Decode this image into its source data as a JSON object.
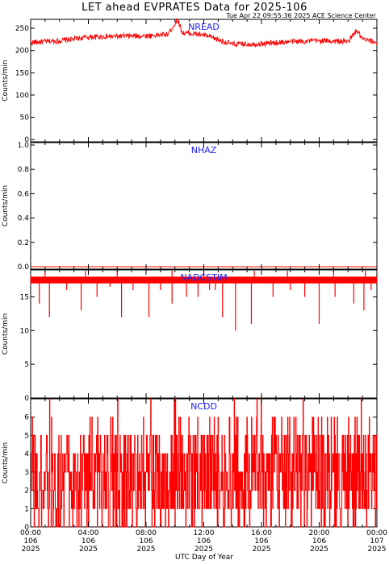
{
  "title": "LET ahead EVPRATES Data for 2025-106",
  "timestamp": "Tue Apr 22 09:55:36 2025 ACE Science Center",
  "xlabel": "UTC Day of Year",
  "x_ticks": [
    {
      "time": "00:00",
      "doy": "106",
      "year": "2025"
    },
    {
      "time": "04:00",
      "doy": "106",
      "year": "2025"
    },
    {
      "time": "08:00",
      "doy": "106",
      "year": "2025"
    },
    {
      "time": "12:00",
      "doy": "106",
      "year": "2025"
    },
    {
      "time": "16:00",
      "doy": "106",
      "year": "2025"
    },
    {
      "time": "20:00",
      "doy": "106",
      "year": "2025"
    },
    {
      "time": "00:00",
      "doy": "107",
      "year": "2025"
    }
  ],
  "colors": {
    "trace": "#ff0000",
    "panel_label": "#1a1aff",
    "axes": "#000000"
  },
  "chart_data": [
    {
      "type": "line",
      "panel_label": "NREAD",
      "ylabel": "Counts/min",
      "xlim_hours": [
        0,
        24
      ],
      "ylim": [
        -5,
        270
      ],
      "yticks": [
        0,
        50,
        100,
        150,
        200,
        250
      ],
      "ytick_labels": [
        "0",
        "50",
        "100",
        "150",
        "200",
        "250"
      ],
      "baseline_profile": [
        [
          0,
          218
        ],
        [
          2,
          222
        ],
        [
          4,
          230
        ],
        [
          6,
          232
        ],
        [
          8,
          233
        ],
        [
          9.5,
          236
        ],
        [
          10.2,
          270
        ],
        [
          10.5,
          240
        ],
        [
          12,
          235
        ],
        [
          13,
          224
        ],
        [
          14,
          214
        ],
        [
          16,
          215
        ],
        [
          18,
          220
        ],
        [
          20,
          222
        ],
        [
          22,
          220
        ],
        [
          22.6,
          245
        ],
        [
          23,
          225
        ],
        [
          24,
          218
        ]
      ],
      "noise": 6
    },
    {
      "type": "line",
      "panel_label": "NHAZ",
      "ylabel": "Counts/min",
      "xlim_hours": [
        0,
        24
      ],
      "ylim": [
        -0.02,
        1.02
      ],
      "yticks": [
        0,
        0.2,
        0.4,
        0.6,
        0.8,
        1.0
      ],
      "ytick_labels": [
        "0.0",
        "0.2",
        "0.4",
        "0.6",
        "0.8",
        "1.0"
      ],
      "constant_value": 0
    },
    {
      "type": "line",
      "panel_label": "NADCSTIM",
      "ylabel": "Counts/min",
      "xlim_hours": [
        0,
        24
      ],
      "ylim": [
        0,
        19
      ],
      "yticks": [
        0,
        5,
        10,
        15
      ],
      "ytick_labels": [
        "0",
        "5",
        "10",
        "15"
      ],
      "band": [
        17,
        18
      ],
      "dips": [
        [
          0.6,
          14
        ],
        [
          1.3,
          12
        ],
        [
          2.5,
          16
        ],
        [
          3.5,
          13
        ],
        [
          4.6,
          15
        ],
        [
          5.5,
          16.5
        ],
        [
          6.3,
          12
        ],
        [
          7.1,
          16
        ],
        [
          8.2,
          12
        ],
        [
          9.0,
          16
        ],
        [
          9.8,
          14
        ],
        [
          10.8,
          15
        ],
        [
          11.6,
          15
        ],
        [
          12.4,
          16
        ],
        [
          12.8,
          16
        ],
        [
          13.3,
          12
        ],
        [
          14.2,
          10
        ],
        [
          15.3,
          11
        ],
        [
          16.8,
          15
        ],
        [
          18.0,
          16
        ],
        [
          19.0,
          15
        ],
        [
          20.0,
          11
        ],
        [
          21.1,
          15
        ],
        [
          22.4,
          14
        ],
        [
          23.1,
          13
        ],
        [
          23.6,
          16
        ]
      ],
      "spikes": [
        1.0,
        3.8,
        6.0,
        9.8,
        12.0,
        15.5,
        17.8,
        21.0,
        23.2
      ]
    },
    {
      "type": "line",
      "panel_label": "NCDD",
      "ylabel": "Counts/min",
      "xlim_hours": [
        0,
        24
      ],
      "ylim": [
        0,
        7
      ],
      "yticks": [
        0,
        1,
        2,
        3,
        4,
        5,
        6
      ],
      "ytick_labels": [
        "0",
        "1",
        "2",
        "3",
        "4",
        "5",
        "6"
      ],
      "value_range": [
        0,
        7
      ]
    }
  ]
}
